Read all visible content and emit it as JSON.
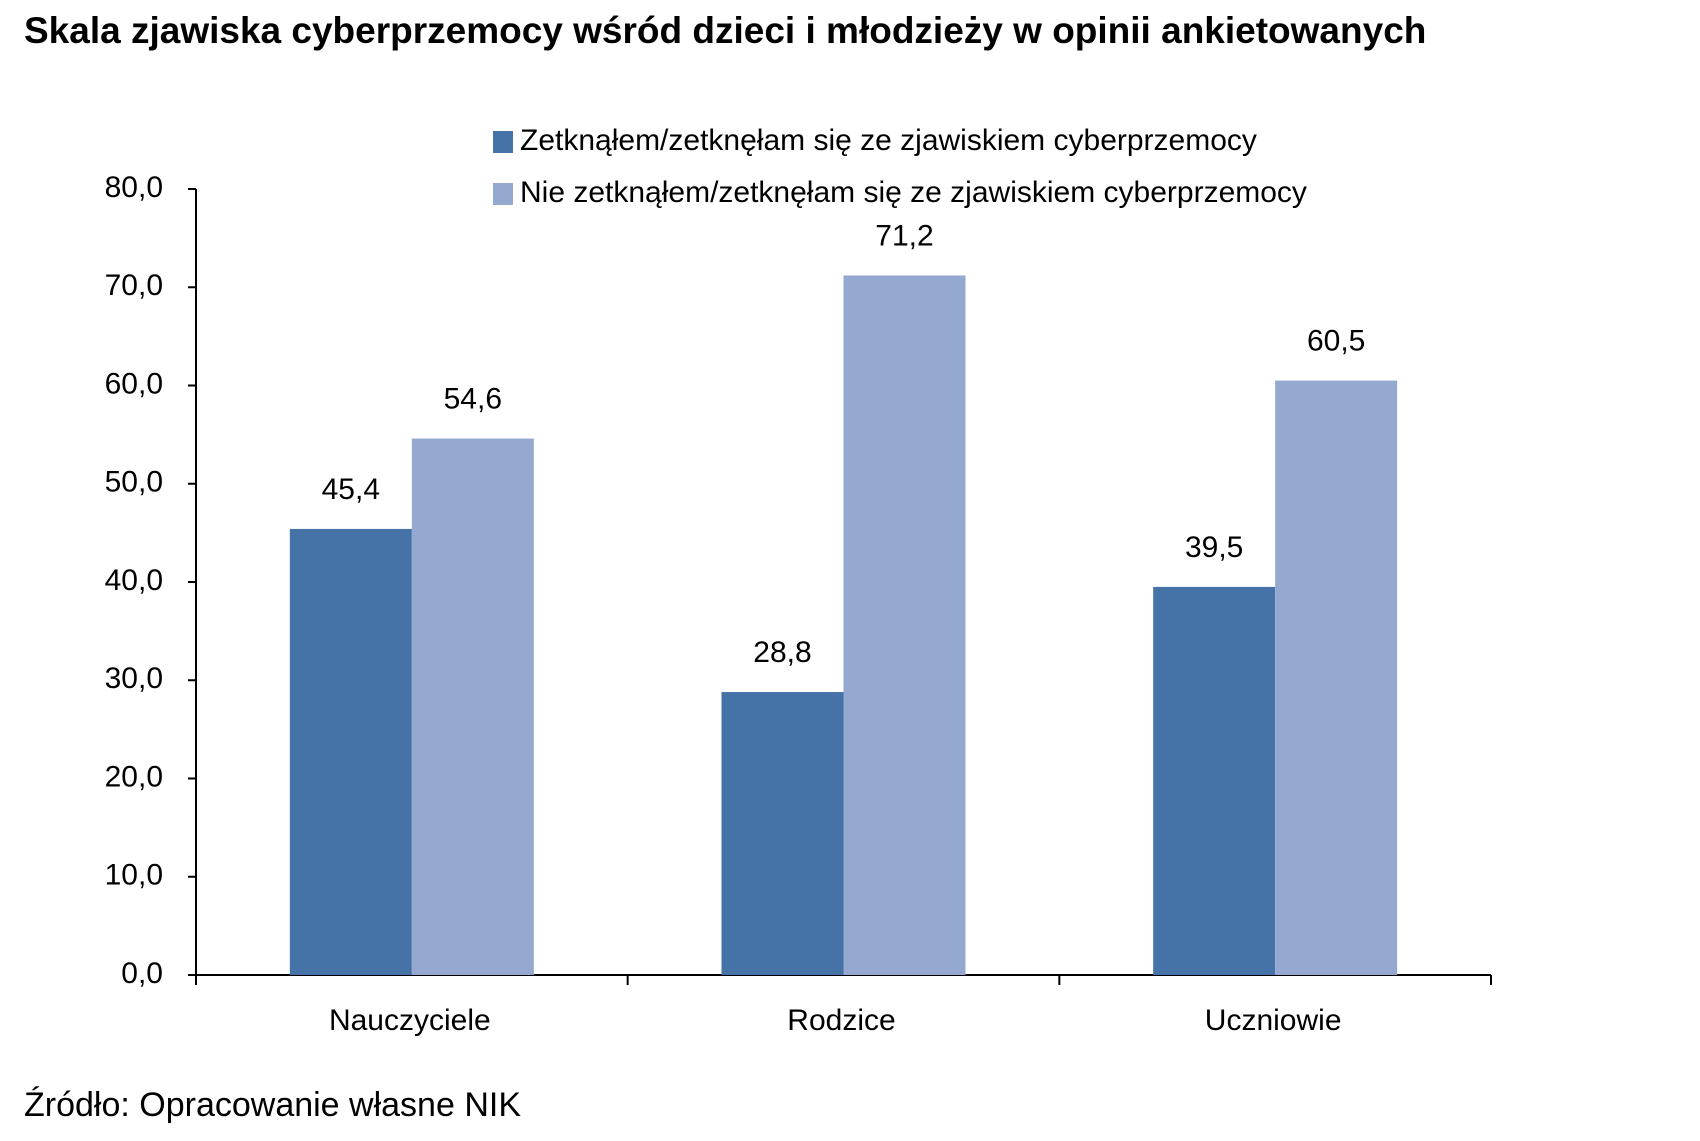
{
  "chart_data": {
    "type": "bar",
    "title": "Skala zjawiska cyberprzemocy wśród dzieci i młodzieży w opinii ankietowanych",
    "categories": [
      "Nauczyciele",
      "Rodzice",
      "Uczniowie"
    ],
    "series": [
      {
        "name": "Zetknąłem/zetknęłam się ze zjawiskiem cyberprzemocy",
        "color": "#4572a7",
        "values": [
          45.4,
          28.8,
          39.5
        ],
        "value_labels": [
          "45,4",
          "28,8",
          "39,5"
        ]
      },
      {
        "name": "Nie zetknąłem/zetknęłam się ze zjawiskiem cyberprzemocy",
        "color": "#95a9d0",
        "values": [
          54.6,
          71.2,
          60.5
        ],
        "value_labels": [
          "54,6",
          "71,2",
          "60,5"
        ]
      }
    ],
    "ylim": [
      0,
      80
    ],
    "yticks": [
      {
        "value": 0,
        "label": "0,0"
      },
      {
        "value": 10,
        "label": "10,0"
      },
      {
        "value": 20,
        "label": "20,0"
      },
      {
        "value": 30,
        "label": "30,0"
      },
      {
        "value": 40,
        "label": "40,0"
      },
      {
        "value": 50,
        "label": "50,0"
      },
      {
        "value": 60,
        "label": "60,0"
      },
      {
        "value": 70,
        "label": "70,0"
      },
      {
        "value": 80,
        "label": "80,0"
      }
    ],
    "grid": false,
    "source": "Źródło: Opracowanie własne NIK"
  }
}
